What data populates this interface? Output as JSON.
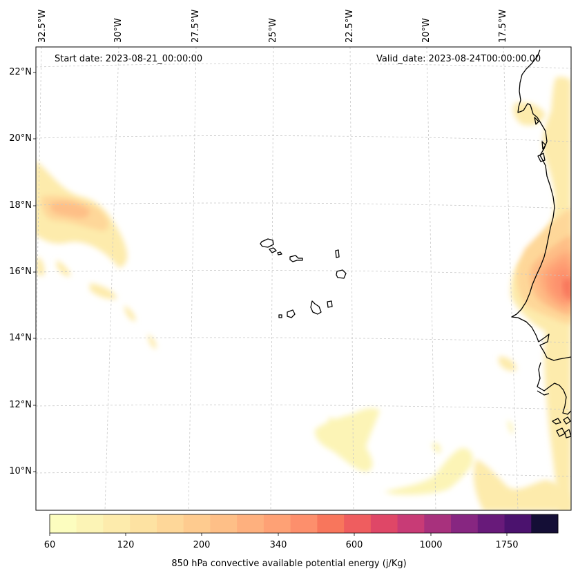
{
  "header": {
    "start_date": "Start date: 2023-08-21_00:00:00",
    "valid_date": "Valid_date: 2023-08-24T00:00:00.00"
  },
  "lat_labels": [
    "22°N",
    "20°N",
    "18°N",
    "16°N",
    "14°N",
    "12°N",
    "10°N"
  ],
  "lon_labels": [
    "32.5°W",
    "30°W",
    "27.5°W",
    "25°W",
    "22.5°W",
    "20°W",
    "17.5°W"
  ],
  "colorbar": {
    "title": "850 hPa convective available potential energy (j/Kg)",
    "tick_labels": [
      "60",
      "120",
      "200",
      "340",
      "600",
      "1000",
      "1750"
    ],
    "colors": [
      "#fcfdbf",
      "#fcf4b6",
      "#fdebac",
      "#fde2a2",
      "#fed799",
      "#fecb8f",
      "#febf87",
      "#feb07e",
      "#fea175",
      "#fd8f6c",
      "#f8765c",
      "#ef5d5f",
      "#df4767",
      "#c83b76",
      "#a8317d",
      "#872681",
      "#681a7a",
      "#4b126e",
      "#140e36"
    ]
  },
  "map": {
    "background": "#ffffff",
    "coast_color": "#000000",
    "grid_color": "#c8c8c8"
  }
}
